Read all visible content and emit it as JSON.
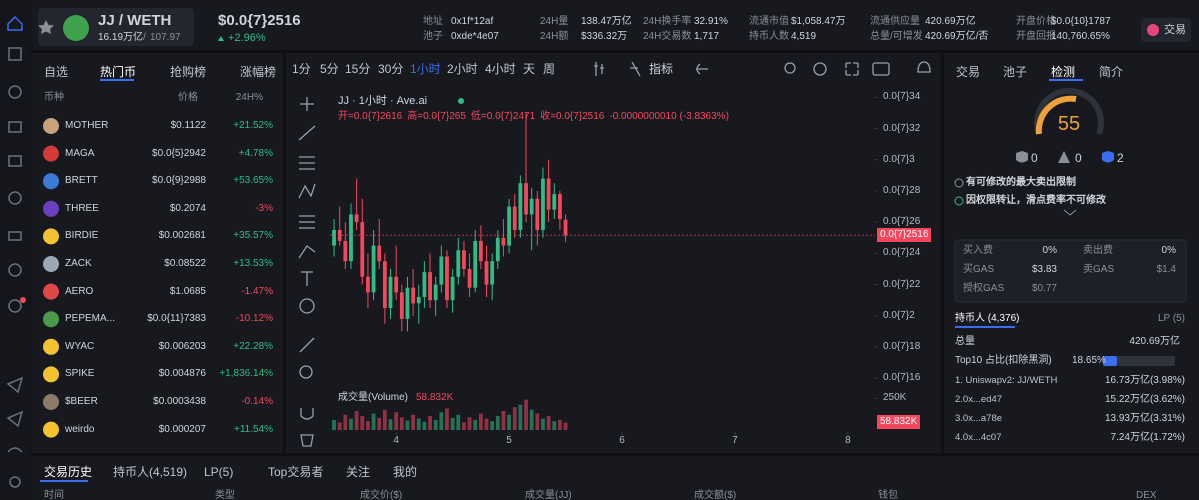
{
  "header": {
    "pair": "JJ / WETH",
    "market_cap": "16.19万亿",
    "holders_small": "107.97",
    "price": "$0.0{7}2516",
    "change": "+2.96%",
    "trade_button": "交易",
    "stats": [
      {
        "label": "地址",
        "value": "0x1f*12af"
      },
      {
        "label": "池子",
        "value": "0xde*4e07"
      },
      {
        "label": "24H量",
        "value": "138.47万亿"
      },
      {
        "label": "24H额",
        "value": "$336.32万"
      },
      {
        "label": "24H换手率",
        "value": "32.91%"
      },
      {
        "label": "24H交易数",
        "value": "1,717"
      },
      {
        "label": "流通市值",
        "value": "$1,058.47万"
      },
      {
        "label": "持币人数",
        "value": "4,519"
      },
      {
        "label": "流通供应量",
        "value": "420.69万亿"
      },
      {
        "label": "总量/可增发",
        "value": "420.69万亿/否"
      },
      {
        "label": "开盘价格",
        "value": "$0.0{10}1787"
      },
      {
        "label": "开盘回报",
        "value": "140,760.65%"
      }
    ]
  },
  "token_list": {
    "tabs": [
      "自选",
      "热门币",
      "抢购榜",
      "涨幅榜"
    ],
    "columns": [
      "币种",
      "价格",
      "24H%"
    ],
    "rows": [
      {
        "name": "MOTHER",
        "price": "$0.1122",
        "change": "+21.52%"
      },
      {
        "name": "MAGA",
        "price": "$0.0{5}2942",
        "change": "+4.78%"
      },
      {
        "name": "BRETT",
        "price": "$0.0{9}2988",
        "change": "+53.65%"
      },
      {
        "name": "THREE",
        "price": "$0.2074",
        "change": "-3%"
      },
      {
        "name": "BIRDIE",
        "price": "$0.002681",
        "change": "+35.57%"
      },
      {
        "name": "ZACK",
        "price": "$0.08522",
        "change": "+13.53%"
      },
      {
        "name": "AERO",
        "price": "$1.0685",
        "change": "-1.47%"
      },
      {
        "name": "PEPEMA...",
        "price": "$0.0{11}7383",
        "change": "-10.12%"
      },
      {
        "name": "WYAC",
        "price": "$0.006203",
        "change": "+22.28%"
      },
      {
        "name": "SPIKE",
        "price": "$0.004876",
        "change": "+1,836.14%"
      },
      {
        "name": "$BEER",
        "price": "$0.0003438",
        "change": "-0.14%"
      },
      {
        "name": "weirdo",
        "price": "$0.000207",
        "change": "+11.54%"
      }
    ]
  },
  "toolbar": {
    "intervals": [
      "1分",
      "5分",
      "15分",
      "30分",
      "1小时",
      "2小时",
      "4小时",
      "天",
      "周"
    ],
    "indicator": "指标"
  },
  "chart_data": {
    "type": "candlestick",
    "title": "JJ · 1小时 · Ave.ai",
    "ohlc_labels": [
      "开=0.0{7}2616",
      "高=0.0{7}265",
      "低=0.0{7}2471",
      "收=0.0{7}2516",
      "-0.0000000010 (-3.8363%)"
    ],
    "x": [
      3.45,
      3.5,
      3.55,
      3.6,
      3.65,
      3.7,
      3.75,
      3.8,
      3.85,
      3.9,
      3.95,
      4,
      4.05,
      4.1,
      4.15,
      4.2,
      4.25,
      4.3,
      4.35,
      4.4,
      4.45,
      4.5,
      4.55,
      4.6,
      4.65,
      4.7,
      4.75,
      4.8,
      4.85,
      4.9,
      4.95,
      5,
      5.05,
      5.1,
      5.15,
      5.2,
      5.25,
      5.3,
      5.35,
      5.4,
      5.45,
      5.5
    ],
    "open": [
      2.45e-09,
      2.55e-09,
      2.48e-09,
      2.35e-09,
      2.65e-09,
      2.6e-09,
      2.25e-09,
      2.15e-09,
      2.45e-09,
      2.35e-09,
      2.05e-09,
      2.25e-09,
      2.15e-09,
      1.98e-09,
      2.18e-09,
      2.08e-09,
      2.12e-09,
      2.28e-09,
      2.1e-09,
      2.2e-09,
      2.38e-09,
      2.1e-09,
      2.25e-09,
      2.42e-09,
      2.3e-09,
      2.18e-09,
      2.48e-09,
      2.35e-09,
      2.2e-09,
      2.35e-09,
      2.5e-09,
      2.45e-09,
      2.7e-09,
      2.55e-09,
      2.85e-09,
      2.65e-09,
      2.75e-09,
      2.55e-09,
      2.88e-09,
      2.68e-09,
      2.78e-09,
      2.616e-09
    ],
    "high": [
      2.62e-09,
      2.7e-09,
      2.6e-09,
      2.72e-09,
      2.88e-09,
      2.75e-09,
      2.4e-09,
      2.55e-09,
      2.62e-09,
      2.4e-09,
      2.3e-09,
      2.45e-09,
      2.2e-09,
      2.25e-09,
      2.3e-09,
      2.2e-09,
      2.35e-09,
      2.4e-09,
      2.25e-09,
      2.45e-09,
      2.42e-09,
      2.3e-09,
      2.5e-09,
      2.48e-09,
      2.4e-09,
      2.55e-09,
      2.58e-09,
      2.45e-09,
      2.4e-09,
      2.55e-09,
      2.62e-09,
      2.75e-09,
      2.78e-09,
      2.9e-09,
      3.3e-09,
      2.82e-09,
      2.8e-09,
      2.95e-09,
      3e-09,
      2.85e-09,
      2.8e-09,
      2.65e-09
    ],
    "low": [
      2.38e-09,
      2.45e-09,
      2.3e-09,
      2.3e-09,
      2.55e-09,
      2.2e-09,
      2.05e-09,
      2.1e-09,
      2.3e-09,
      1.95e-09,
      1.98e-09,
      2.1e-09,
      1.9e-09,
      1.9e-09,
      2e-09,
      1.95e-09,
      2.05e-09,
      2.05e-09,
      2e-09,
      2.15e-09,
      2.05e-09,
      2.02e-09,
      2.2e-09,
      2.25e-09,
      2.12e-09,
      2.15e-09,
      2.3e-09,
      2.12e-09,
      2.1e-09,
      2.3e-09,
      2.38e-09,
      2.4e-09,
      2.5e-09,
      2.5e-09,
      2.6e-09,
      2.42e-09,
      2.45e-09,
      2.5e-09,
      2.6e-09,
      2.62e-09,
      2.55e-09,
      2.471e-09
    ],
    "close": [
      2.55e-09,
      2.48e-09,
      2.35e-09,
      2.65e-09,
      2.6e-09,
      2.25e-09,
      2.15e-09,
      2.45e-09,
      2.35e-09,
      2.05e-09,
      2.25e-09,
      2.15e-09,
      1.98e-09,
      2.18e-09,
      2.08e-09,
      2.12e-09,
      2.28e-09,
      2.1e-09,
      2.2e-09,
      2.38e-09,
      2.1e-09,
      2.25e-09,
      2.42e-09,
      2.3e-09,
      2.18e-09,
      2.48e-09,
      2.35e-09,
      2.2e-09,
      2.35e-09,
      2.5e-09,
      2.45e-09,
      2.7e-09,
      2.55e-09,
      2.85e-09,
      2.65e-09,
      2.75e-09,
      2.55e-09,
      2.88e-09,
      2.68e-09,
      2.78e-09,
      2.62e-09,
      2.516e-09
    ],
    "volume": [
      80000,
      60000,
      120000,
      90000,
      150000,
      110000,
      70000,
      130000,
      95000,
      160000,
      85000,
      140000,
      100000,
      75000,
      120000,
      90000,
      65000,
      110000,
      80000,
      140000,
      170000,
      95000,
      120000,
      60000,
      100000,
      80000,
      130000,
      90000,
      70000,
      110000,
      150000,
      120000,
      180000,
      200000,
      240000,
      160000,
      130000,
      90000,
      110000,
      70000,
      80000,
      58832
    ],
    "up_color": "#2ebd85",
    "down_color": "#f6465d",
    "xlim": [
      3.06,
      8.24
    ],
    "xticks": [
      4,
      5,
      6,
      7,
      8
    ],
    "ylim": [
      1.55e-09,
      3.46e-09
    ],
    "yticks": [
      {
        "value": 3.4e-09,
        "label": "0.0{7}34"
      },
      {
        "value": 3.2e-09,
        "label": "0.0{7}32"
      },
      {
        "value": 3e-09,
        "label": "0.0{7}3"
      },
      {
        "value": 2.8e-09,
        "label": "0.0{7}28"
      },
      {
        "value": 2.6e-09,
        "label": "0.0{7}26"
      },
      {
        "value": 2.4e-09,
        "label": "0.0{7}24"
      },
      {
        "value": 2.2e-09,
        "label": "0.0{7}22"
      },
      {
        "value": 2e-09,
        "label": "0.0{7}2"
      },
      {
        "value": 1.8e-09,
        "label": "0.0{7}18"
      },
      {
        "value": 1.6e-09,
        "label": "0.0{7}16"
      }
    ],
    "last_price": {
      "value": 2.516e-09,
      "label": "0.0{7}2516"
    },
    "volume_title": "成交量(Volume)",
    "volume_last_label": "58.832K",
    "vlim": [
      0,
      300000
    ],
    "vticks": [
      {
        "value": 250000,
        "label": "250K"
      }
    ]
  },
  "security": {
    "tabs": [
      "交易",
      "池子",
      "检测",
      "简介"
    ],
    "score": "55",
    "counts": [
      "0",
      "0",
      "2"
    ],
    "checks": [
      "有可修改的最大卖出限制",
      "因权限转让，滑点费率不可修改"
    ],
    "fees": [
      {
        "label": "买入费",
        "value": "0%"
      },
      {
        "label": "卖出费",
        "value": "0%"
      },
      {
        "label": "买GAS",
        "value": "$3.83"
      },
      {
        "label": "卖GAS",
        "value": "$1.4"
      },
      {
        "label": "授权GAS",
        "value": "$0.77"
      }
    ]
  },
  "holders": {
    "tab": "持币人 (4,376)",
    "lp": "LP (5)",
    "total_label": "总量",
    "total": "420.69万亿",
    "top10_label": "Top10 占比(扣除黑洞)",
    "top10": "18.65%",
    "list": [
      {
        "name": "1. Uniswapv2: JJ/WETH",
        "amount": "16.73万亿(3.98%)"
      },
      {
        "name": "2.0x...ed47",
        "amount": "15.22万亿(3.62%)"
      },
      {
        "name": "3.0x...a78e",
        "amount": "13.93万亿(3.31%)"
      },
      {
        "name": "4.0x...4c07",
        "amount": "7.24万亿(1.72%)"
      }
    ]
  },
  "bottom": {
    "tabs": [
      "交易历史",
      "持币人(4,519)",
      "LP(5)",
      "Top交易者",
      "关注",
      "我的"
    ],
    "columns": [
      "时间",
      "类型",
      "成交价($)",
      "成交量(JJ)",
      "成交额($)",
      "钱包",
      "DEX"
    ]
  }
}
